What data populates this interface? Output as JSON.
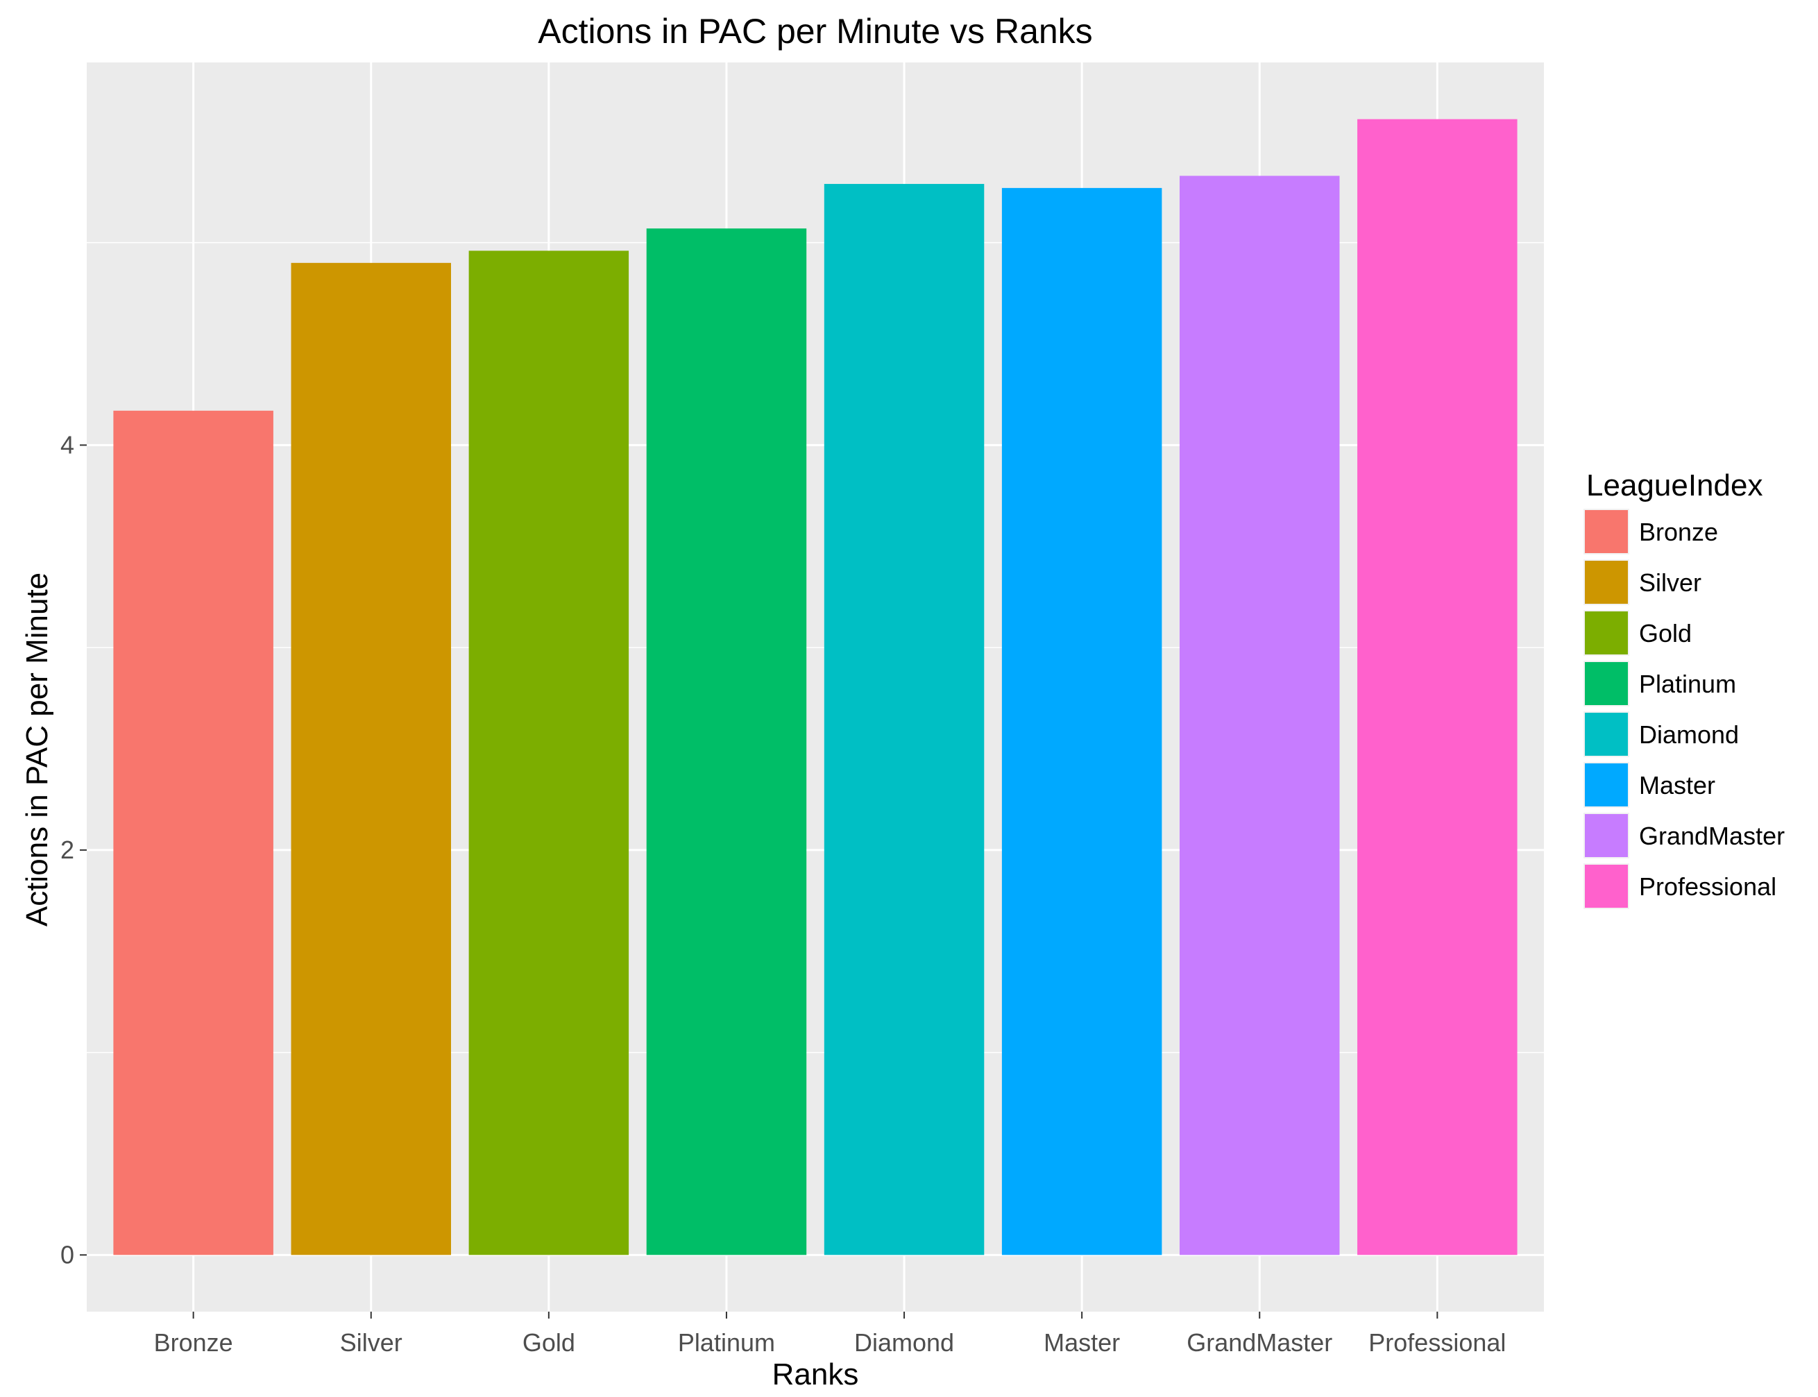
{
  "chart_data": {
    "type": "bar",
    "title": "Actions in PAC per Minute vs Ranks",
    "xlabel": "Ranks",
    "ylabel": "Actions in PAC per Minute",
    "categories": [
      "Bronze",
      "Silver",
      "Gold",
      "Platinum",
      "Diamond",
      "Master",
      "GrandMaster",
      "Professional"
    ],
    "values": [
      4.17,
      4.9,
      4.96,
      5.07,
      5.29,
      5.27,
      5.33,
      5.61
    ],
    "colors": [
      "#F8766D",
      "#CD9600",
      "#7CAE00",
      "#00BE67",
      "#00BFC4",
      "#00A9FF",
      "#C77CFF",
      "#FF61CC"
    ],
    "ylim": [
      -0.28,
      5.89
    ],
    "yticks": [
      0,
      2,
      4
    ],
    "grid": true,
    "background": "#EBEBEB",
    "legend": {
      "title": "LeagueIndex",
      "position": "right",
      "items": [
        "Bronze",
        "Silver",
        "Gold",
        "Platinum",
        "Diamond",
        "Master",
        "GrandMaster",
        "Professional"
      ]
    }
  }
}
